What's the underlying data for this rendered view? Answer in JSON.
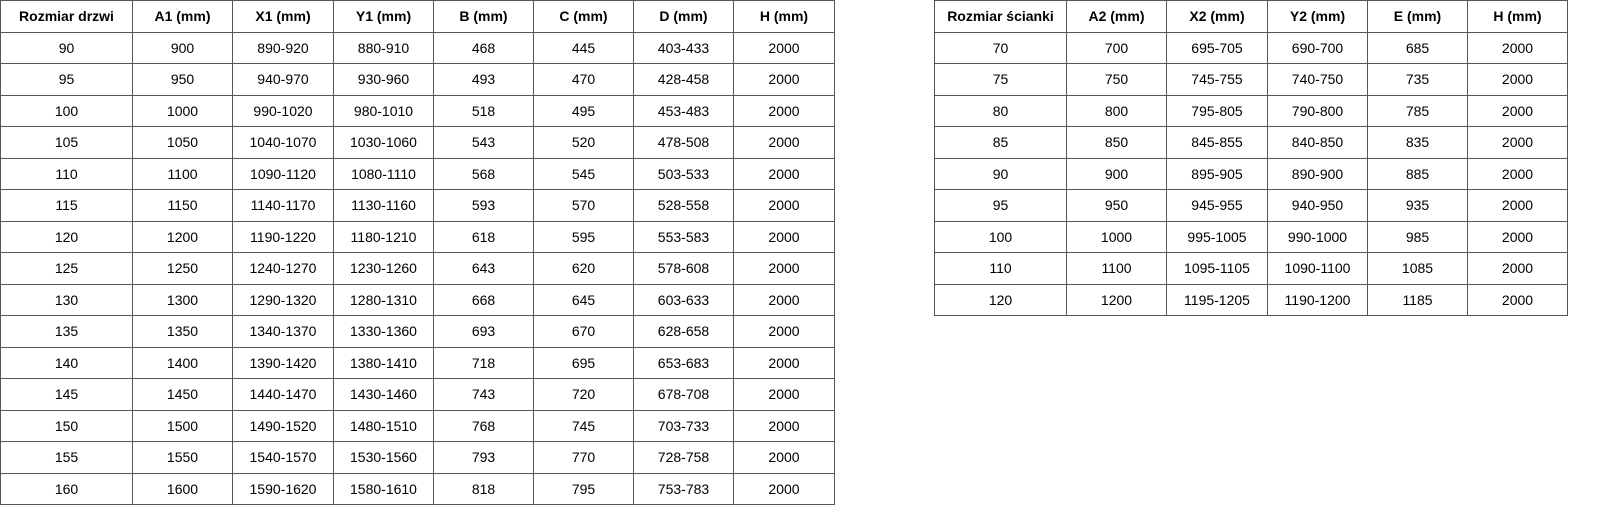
{
  "tables": [
    {
      "headers": [
        "Rozmiar drzwi",
        "A1 (mm)",
        "X1 (mm)",
        "Y1 (mm)",
        "B (mm)",
        "C (mm)",
        "D (mm)",
        "H (mm)"
      ],
      "rows": [
        [
          "90",
          "900",
          "890-920",
          "880-910",
          "468",
          "445",
          "403-433",
          "2000"
        ],
        [
          "95",
          "950",
          "940-970",
          "930-960",
          "493",
          "470",
          "428-458",
          "2000"
        ],
        [
          "100",
          "1000",
          "990-1020",
          "980-1010",
          "518",
          "495",
          "453-483",
          "2000"
        ],
        [
          "105",
          "1050",
          "1040-1070",
          "1030-1060",
          "543",
          "520",
          "478-508",
          "2000"
        ],
        [
          "110",
          "1100",
          "1090-1120",
          "1080-1110",
          "568",
          "545",
          "503-533",
          "2000"
        ],
        [
          "115",
          "1150",
          "1140-1170",
          "1130-1160",
          "593",
          "570",
          "528-558",
          "2000"
        ],
        [
          "120",
          "1200",
          "1190-1220",
          "1180-1210",
          "618",
          "595",
          "553-583",
          "2000"
        ],
        [
          "125",
          "1250",
          "1240-1270",
          "1230-1260",
          "643",
          "620",
          "578-608",
          "2000"
        ],
        [
          "130",
          "1300",
          "1290-1320",
          "1280-1310",
          "668",
          "645",
          "603-633",
          "2000"
        ],
        [
          "135",
          "1350",
          "1340-1370",
          "1330-1360",
          "693",
          "670",
          "628-658",
          "2000"
        ],
        [
          "140",
          "1400",
          "1390-1420",
          "1380-1410",
          "718",
          "695",
          "653-683",
          "2000"
        ],
        [
          "145",
          "1450",
          "1440-1470",
          "1430-1460",
          "743",
          "720",
          "678-708",
          "2000"
        ],
        [
          "150",
          "1500",
          "1490-1520",
          "1480-1510",
          "768",
          "745",
          "703-733",
          "2000"
        ],
        [
          "155",
          "1550",
          "1540-1570",
          "1530-1560",
          "793",
          "770",
          "728-758",
          "2000"
        ],
        [
          "160",
          "1600",
          "1590-1620",
          "1580-1610",
          "818",
          "795",
          "753-783",
          "2000"
        ]
      ]
    },
    {
      "headers": [
        "Rozmiar ścianki",
        "A2 (mm)",
        "X2 (mm)",
        "Y2 (mm)",
        "E (mm)",
        "H (mm)"
      ],
      "rows": [
        [
          "70",
          "700",
          "695-705",
          "690-700",
          "685",
          "2000"
        ],
        [
          "75",
          "750",
          "745-755",
          "740-750",
          "735",
          "2000"
        ],
        [
          "80",
          "800",
          "795-805",
          "790-800",
          "785",
          "2000"
        ],
        [
          "85",
          "850",
          "845-855",
          "840-850",
          "835",
          "2000"
        ],
        [
          "90",
          "900",
          "895-905",
          "890-900",
          "885",
          "2000"
        ],
        [
          "95",
          "950",
          "945-955",
          "940-950",
          "935",
          "2000"
        ],
        [
          "100",
          "1000",
          "995-1005",
          "990-1000",
          "985",
          "2000"
        ],
        [
          "110",
          "1100",
          "1095-1105",
          "1090-1100",
          "1085",
          "2000"
        ],
        [
          "120",
          "1200",
          "1195-1205",
          "1190-1200",
          "1185",
          "2000"
        ]
      ]
    }
  ]
}
